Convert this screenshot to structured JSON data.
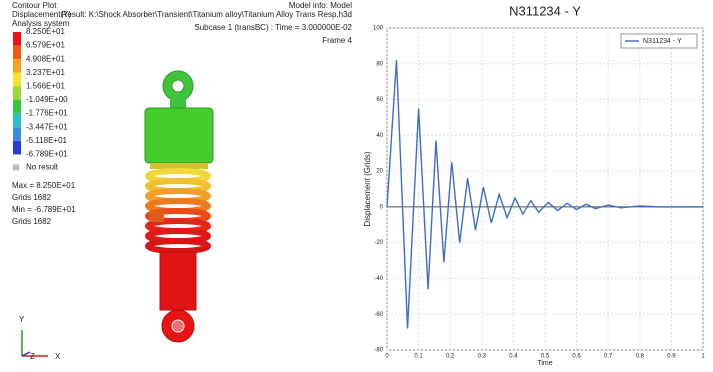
{
  "contour": {
    "title": "Contour Plot",
    "result_type": "Displacement(Y)",
    "system": "Analysis system",
    "legend": {
      "values": [
        "8.250E+01",
        "6.579E+01",
        "4.908E+01",
        "3.237E+01",
        "1.566E+01",
        "-1.049E+00",
        "-1.776E+01",
        "-3.447E+01",
        "-5.118E+01",
        "-6.789E+01"
      ],
      "colors": [
        "#e8141a",
        "#f25a14",
        "#f7a21c",
        "#f2e22a",
        "#9cd63a",
        "#33c63a",
        "#29c0c8",
        "#3a8ae0",
        "#2a3cd8"
      ],
      "no_result": "No result"
    },
    "max": "Max = 8.250E+01",
    "max_grid": "Grids 1682",
    "min": "Min = -6.789E+01",
    "min_grid": "Grids 1682",
    "model_info": "Model info: Model",
    "result": "Result: K:\\Shock Absorber\\Transient\\Titanium alloy\\Titanium Alloy Trans Resp.h3d",
    "subcase": "Subcase 1 (transBC) : Time = 3.000000E-02",
    "frame": "Frame 4",
    "triad": [
      "Y",
      "Z",
      "X"
    ]
  },
  "chart_data": {
    "type": "line",
    "title": "N311234 - Y",
    "x_label": "Time",
    "y_label": "Displacement (Grids)",
    "x": [
      0,
      0.03,
      0.065,
      0.1,
      0.13,
      0.155,
      0.18,
      0.205,
      0.23,
      0.255,
      0.28,
      0.305,
      0.33,
      0.355,
      0.38,
      0.405,
      0.43,
      0.455,
      0.48,
      0.51,
      0.54,
      0.57,
      0.6,
      0.63,
      0.66,
      0.7,
      0.74,
      0.8,
      0.86,
      1
    ],
    "series": [
      {
        "name": "N311234 - Y",
        "color": "#3a6fc4",
        "values": [
          0,
          82,
          -68,
          55,
          -46,
          37,
          -31,
          25,
          -20,
          16,
          -13,
          11,
          -9,
          7,
          -6,
          5,
          -4,
          3.5,
          -3,
          2.5,
          -2,
          2,
          -1.5,
          1.5,
          -1,
          1,
          -0.5,
          0.5,
          0,
          0
        ]
      }
    ],
    "xlim": [
      0,
      1
    ],
    "xticks": [
      0,
      0.1,
      0.2,
      0.3,
      0.4,
      0.5,
      0.6,
      0.7,
      0.8,
      0.9,
      1
    ],
    "ylim": [
      -80,
      100
    ],
    "yticks": [
      -80,
      -60,
      -40,
      -20,
      0,
      20,
      40,
      60,
      80,
      100
    ],
    "grid": true,
    "legend": "upper right"
  }
}
